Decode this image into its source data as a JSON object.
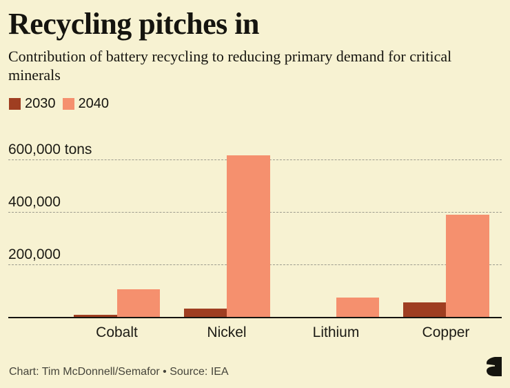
{
  "header": {
    "title": "Recycling pitches in",
    "subtitle": "Contribution of battery recycling to reducing primary demand for critical minerals"
  },
  "legend": {
    "items": [
      {
        "label": "2030",
        "color": "#9F3E21"
      },
      {
        "label": "2040",
        "color": "#F5906E"
      }
    ]
  },
  "chart_data": {
    "type": "bar",
    "categories": [
      "Cobalt",
      "Nickel",
      "Lithium",
      "Copper"
    ],
    "series": [
      {
        "name": "2030",
        "color": "#9F3E21",
        "values": [
          8000,
          32000,
          0,
          55000
        ]
      },
      {
        "name": "2040",
        "color": "#F5906E",
        "values": [
          105000,
          615000,
          75000,
          390000
        ]
      }
    ],
    "unit": "tons",
    "yticks": [
      {
        "value": 200000,
        "label": "200,000"
      },
      {
        "value": 400000,
        "label": "400,000"
      },
      {
        "value": 600000,
        "label": "600,000 tons"
      }
    ],
    "ylim": [
      0,
      632000
    ],
    "grid": "horizontal-dashed",
    "legend_position": "top-left",
    "xlabel": "",
    "ylabel": "tons"
  },
  "footer": {
    "credit": "Chart: Tim McDonnell/Semafor • Source: IEA",
    "logo": "semafor-logo"
  },
  "colors": {
    "background": "#F7F2D2",
    "text": "#15140F",
    "muted_text": "#45443A",
    "gridline": "#9C9B8E",
    "axis": "#15140F"
  }
}
